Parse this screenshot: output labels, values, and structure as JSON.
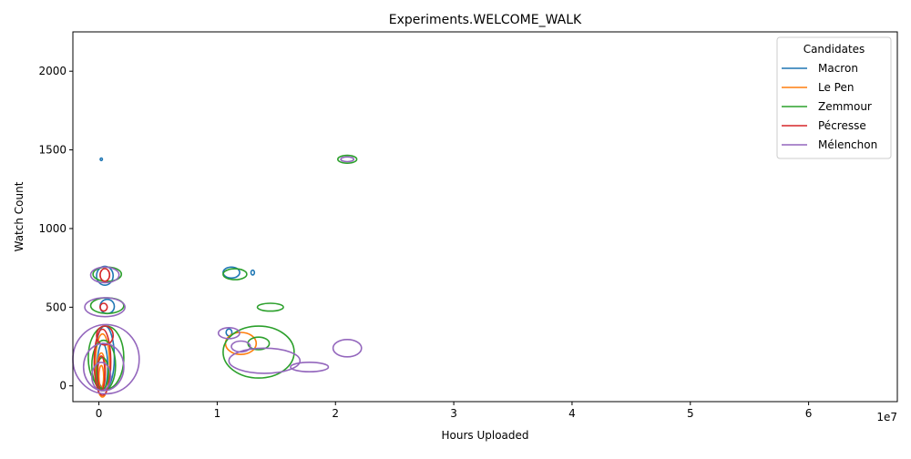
{
  "chart_data": {
    "type": "kde-contour",
    "title": "Experiments.WELCOME_WALK",
    "xlabel": "Hours Uploaded",
    "ylabel": "Watch Count",
    "x_offset_label": "1e7",
    "x_scale": 10000000,
    "xlim": [
      -2200000,
      67500000
    ],
    "ylim": [
      -100,
      2250
    ],
    "xticks": [
      0,
      10000000,
      20000000,
      30000000,
      40000000,
      50000000,
      60000000
    ],
    "xtick_labels": [
      "0",
      "1",
      "2",
      "3",
      "4",
      "5",
      "6"
    ],
    "yticks": [
      0,
      500,
      1000,
      1500,
      2000
    ],
    "ytick_labels": [
      "0",
      "500",
      "1000",
      "1500",
      "2000"
    ],
    "grid": false,
    "legend": {
      "title": "Candidates",
      "placement": "top-right"
    },
    "series": [
      {
        "name": "Macron",
        "color": "#1f77b4",
        "contours": [
          {
            "cx": 200000,
            "cy": 1440,
            "rx": 80000,
            "ry": 8
          },
          {
            "cx": 500000,
            "cy": 700,
            "rx": 700000,
            "ry": 60
          },
          {
            "cx": 700000,
            "cy": 505,
            "rx": 600000,
            "ry": 45
          },
          {
            "cx": 500000,
            "cy": 180,
            "rx": 800000,
            "ry": 200
          },
          {
            "cx": 300000,
            "cy": 120,
            "rx": 450000,
            "ry": 150
          },
          {
            "cx": 11200000,
            "cy": 720,
            "rx": 700000,
            "ry": 35
          },
          {
            "cx": 13000000,
            "cy": 720,
            "rx": 150000,
            "ry": 15
          },
          {
            "cx": 11000000,
            "cy": 340,
            "rx": 250000,
            "ry": 22
          }
        ]
      },
      {
        "name": "Le Pen",
        "color": "#ff7f0e",
        "contours": [
          {
            "cx": 300000,
            "cy": 130,
            "rx": 600000,
            "ry": 200
          },
          {
            "cx": 200000,
            "cy": 90,
            "rx": 350000,
            "ry": 120
          },
          {
            "cx": 200000,
            "cy": 60,
            "rx": 200000,
            "ry": 70
          },
          {
            "cx": 12000000,
            "cy": 270,
            "rx": 1300000,
            "ry": 70
          }
        ]
      },
      {
        "name": "Zemmour",
        "color": "#2ca02c",
        "contours": [
          {
            "cx": 21000000,
            "cy": 1440,
            "rx": 800000,
            "ry": 25
          },
          {
            "cx": 700000,
            "cy": 710,
            "rx": 1200000,
            "ry": 45
          },
          {
            "cx": 700000,
            "cy": 510,
            "rx": 1400000,
            "ry": 50
          },
          {
            "cx": 600000,
            "cy": 180,
            "rx": 1500000,
            "ry": 200
          },
          {
            "cx": 400000,
            "cy": 130,
            "rx": 1000000,
            "ry": 160
          },
          {
            "cx": 300000,
            "cy": 80,
            "rx": 500000,
            "ry": 100
          },
          {
            "cx": 11500000,
            "cy": 710,
            "rx": 1000000,
            "ry": 35
          },
          {
            "cx": 14500000,
            "cy": 500,
            "rx": 1100000,
            "ry": 25
          },
          {
            "cx": 13500000,
            "cy": 215,
            "rx": 3000000,
            "ry": 165
          },
          {
            "cx": 13500000,
            "cy": 270,
            "rx": 900000,
            "ry": 40
          }
        ]
      },
      {
        "name": "Pécresse",
        "color": "#d62728",
        "contours": [
          {
            "cx": 500000,
            "cy": 705,
            "rx": 400000,
            "ry": 40
          },
          {
            "cx": 400000,
            "cy": 500,
            "rx": 300000,
            "ry": 25
          },
          {
            "cx": 500000,
            "cy": 320,
            "rx": 700000,
            "ry": 60
          },
          {
            "cx": 300000,
            "cy": 150,
            "rx": 700000,
            "ry": 210
          },
          {
            "cx": 200000,
            "cy": 80,
            "rx": 300000,
            "ry": 110
          }
        ]
      },
      {
        "name": "Mélenchon",
        "color": "#9467bd",
        "contours": [
          {
            "cx": 21000000,
            "cy": 1440,
            "rx": 550000,
            "ry": 15
          },
          {
            "cx": 500000,
            "cy": 705,
            "rx": 1200000,
            "ry": 50
          },
          {
            "cx": 500000,
            "cy": 500,
            "rx": 1700000,
            "ry": 60
          },
          {
            "cx": 600000,
            "cy": 170,
            "rx": 2800000,
            "ry": 220
          },
          {
            "cx": 400000,
            "cy": 120,
            "rx": 1700000,
            "ry": 150
          },
          {
            "cx": 200000,
            "cy": 60,
            "rx": 800000,
            "ry": 90
          },
          {
            "cx": 11000000,
            "cy": 335,
            "rx": 900000,
            "ry": 35
          },
          {
            "cx": 12000000,
            "cy": 250,
            "rx": 800000,
            "ry": 35
          },
          {
            "cx": 14000000,
            "cy": 160,
            "rx": 3000000,
            "ry": 80
          },
          {
            "cx": 17800000,
            "cy": 120,
            "rx": 1600000,
            "ry": 30
          },
          {
            "cx": 21000000,
            "cy": 240,
            "rx": 1200000,
            "ry": 55
          }
        ]
      }
    ]
  }
}
